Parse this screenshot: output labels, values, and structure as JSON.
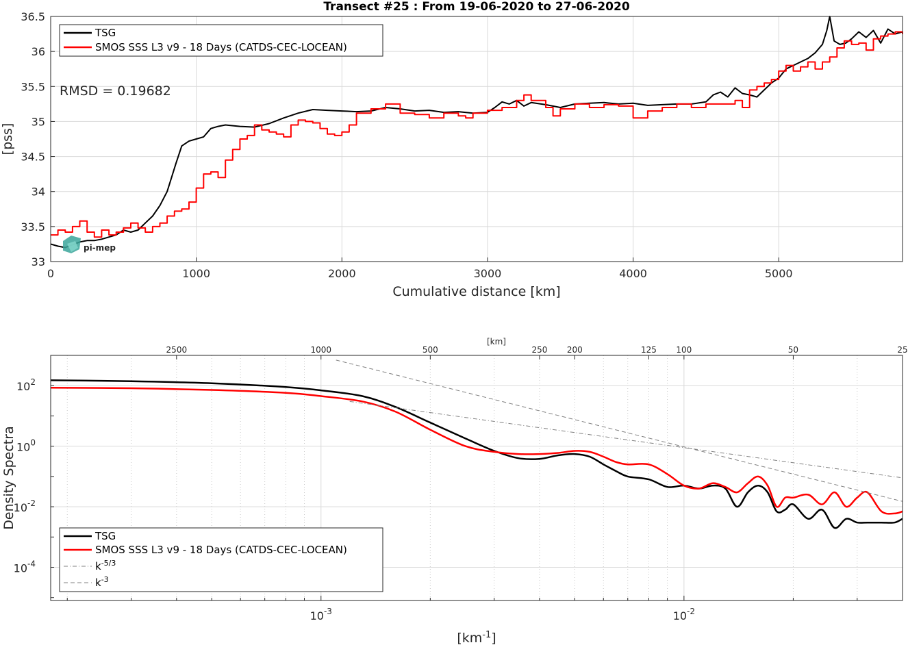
{
  "chart_data": [
    {
      "type": "line",
      "title": "Transect #25 : From 19-06-2020 to 27-06-2020",
      "xlabel": "Cumulative distance [km]",
      "ylabel": "[pss]",
      "xlim": [
        0,
        5850
      ],
      "ylim": [
        33,
        36.5
      ],
      "xticks": [
        0,
        1000,
        2000,
        3000,
        4000,
        5000
      ],
      "yticks": [
        33,
        33.5,
        34,
        34.5,
        35,
        35.5,
        36,
        36.5
      ],
      "grid": true,
      "legend_position": "top-left",
      "annotation": "RMSD = 0.19682",
      "watermark": "pi-mep",
      "series": [
        {
          "name": "TSG",
          "color": "#000000",
          "x": [
            0,
            50,
            100,
            150,
            200,
            250,
            300,
            350,
            400,
            450,
            500,
            550,
            600,
            650,
            700,
            750,
            800,
            830,
            860,
            900,
            950,
            1000,
            1050,
            1100,
            1150,
            1200,
            1300,
            1400,
            1500,
            1600,
            1700,
            1800,
            1900,
            2000,
            2100,
            2200,
            2300,
            2400,
            2500,
            2600,
            2700,
            2800,
            2900,
            3000,
            3050,
            3100,
            3150,
            3200,
            3250,
            3300,
            3400,
            3500,
            3600,
            3700,
            3800,
            3900,
            4000,
            4100,
            4200,
            4300,
            4400,
            4500,
            4550,
            4600,
            4650,
            4700,
            4750,
            4800,
            4850,
            4900,
            4950,
            5000,
            5050,
            5100,
            5150,
            5200,
            5250,
            5300,
            5330,
            5350,
            5380,
            5420,
            5460,
            5500,
            5550,
            5600,
            5650,
            5700,
            5750,
            5800,
            5850
          ],
          "y": [
            33.25,
            33.22,
            33.2,
            33.24,
            33.28,
            33.3,
            33.3,
            33.32,
            33.35,
            33.38,
            33.45,
            33.42,
            33.45,
            33.55,
            33.65,
            33.8,
            34.0,
            34.2,
            34.4,
            34.65,
            34.72,
            34.75,
            34.78,
            34.9,
            34.93,
            34.95,
            34.93,
            34.92,
            34.97,
            35.05,
            35.12,
            35.17,
            35.16,
            35.15,
            35.14,
            35.15,
            35.2,
            35.18,
            35.15,
            35.16,
            35.13,
            35.14,
            35.12,
            35.13,
            35.2,
            35.28,
            35.25,
            35.3,
            35.22,
            35.27,
            35.24,
            35.2,
            35.25,
            35.26,
            35.27,
            35.25,
            35.26,
            35.23,
            35.24,
            35.25,
            35.25,
            35.28,
            35.38,
            35.42,
            35.35,
            35.48,
            35.4,
            35.38,
            35.35,
            35.45,
            35.55,
            35.62,
            35.75,
            35.8,
            35.85,
            35.9,
            35.98,
            36.1,
            36.3,
            36.5,
            36.15,
            36.1,
            36.12,
            36.18,
            36.28,
            36.2,
            36.3,
            36.12,
            36.32,
            36.25,
            36.28
          ]
        },
        {
          "name": "SMOS SSS L3 v9 - 18 Days (CATDS-CEC-LOCEAN)",
          "color": "#ff0000",
          "x": [
            0,
            50,
            100,
            150,
            200,
            250,
            300,
            350,
            400,
            450,
            500,
            550,
            600,
            650,
            700,
            750,
            800,
            850,
            900,
            950,
            1000,
            1050,
            1100,
            1150,
            1200,
            1250,
            1300,
            1350,
            1400,
            1450,
            1500,
            1550,
            1600,
            1650,
            1700,
            1750,
            1800,
            1850,
            1900,
            1950,
            2000,
            2050,
            2100,
            2200,
            2300,
            2400,
            2500,
            2600,
            2700,
            2800,
            2850,
            2900,
            3000,
            3100,
            3200,
            3250,
            3300,
            3400,
            3450,
            3500,
            3600,
            3700,
            3800,
            3900,
            4000,
            4100,
            4200,
            4300,
            4400,
            4500,
            4600,
            4700,
            4750,
            4800,
            4850,
            4900,
            4950,
            5000,
            5050,
            5100,
            5150,
            5200,
            5250,
            5300,
            5350,
            5400,
            5450,
            5500,
            5550,
            5600,
            5650,
            5700,
            5750,
            5800,
            5850
          ],
          "y": [
            33.38,
            33.45,
            33.42,
            33.5,
            33.58,
            33.42,
            33.35,
            33.45,
            33.38,
            33.42,
            33.48,
            33.55,
            33.48,
            33.42,
            33.5,
            33.55,
            33.65,
            33.72,
            33.75,
            33.85,
            34.05,
            34.25,
            34.28,
            34.2,
            34.45,
            34.6,
            34.75,
            34.8,
            34.95,
            34.88,
            34.85,
            34.82,
            34.78,
            34.95,
            35.02,
            35.0,
            34.98,
            34.9,
            34.82,
            34.8,
            34.85,
            34.95,
            35.12,
            35.18,
            35.25,
            35.12,
            35.1,
            35.05,
            35.12,
            35.08,
            35.05,
            35.12,
            35.16,
            35.2,
            35.3,
            35.38,
            35.3,
            35.2,
            35.08,
            35.18,
            35.25,
            35.2,
            35.24,
            35.22,
            35.05,
            35.15,
            35.2,
            35.25,
            35.2,
            35.25,
            35.25,
            35.3,
            35.2,
            35.45,
            35.5,
            35.55,
            35.6,
            35.72,
            35.8,
            35.72,
            35.78,
            35.85,
            35.75,
            35.85,
            35.92,
            36.05,
            36.15,
            36.1,
            36.12,
            36.02,
            36.18,
            36.22,
            36.25,
            36.28,
            36.25
          ]
        }
      ]
    },
    {
      "type": "line",
      "xlabel": "[km-1]",
      "ylabel": "Density Spectra",
      "xscale": "log",
      "yscale": "log",
      "xlim": [
        0.00018,
        0.04
      ],
      "ylim": [
        8e-06,
        1000
      ],
      "xtick_labels": [
        "10-3",
        "10-2"
      ],
      "ytick_labels": [
        "10-4",
        "10-2",
        "100",
        "102"
      ],
      "top_axis_label": "[km]",
      "top_axis_ticks": [
        "2500",
        "1000",
        "500",
        "250",
        "200",
        "125",
        "100",
        "50",
        "25"
      ],
      "grid": true,
      "legend_position": "bottom-left",
      "series": [
        {
          "name": "TSG",
          "color": "#000000",
          "x": [
            0.00018,
            0.0003,
            0.0005,
            0.0008,
            0.001,
            0.0013,
            0.0016,
            0.002,
            0.0025,
            0.003,
            0.0035,
            0.004,
            0.0045,
            0.005,
            0.0055,
            0.006,
            0.0065,
            0.007,
            0.008,
            0.009,
            0.01,
            0.011,
            0.012,
            0.013,
            0.014,
            0.015,
            0.016,
            0.017,
            0.018,
            0.019,
            0.02,
            0.022,
            0.024,
            0.026,
            0.028,
            0.03,
            0.032,
            0.035,
            0.038,
            0.04
          ],
          "y": [
            150,
            140,
            120,
            90,
            70,
            45,
            20,
            6,
            1.8,
            0.7,
            0.4,
            0.38,
            0.5,
            0.55,
            0.45,
            0.25,
            0.15,
            0.1,
            0.08,
            0.045,
            0.05,
            0.04,
            0.05,
            0.04,
            0.01,
            0.03,
            0.05,
            0.03,
            0.007,
            0.008,
            0.012,
            0.004,
            0.008,
            0.002,
            0.004,
            0.003,
            0.003,
            0.003,
            0.003,
            0.004
          ]
        },
        {
          "name": "SMOS SSS L3 v9 - 18 Days (CATDS-CEC-LOCEAN)",
          "color": "#ff0000",
          "x": [
            0.00018,
            0.0003,
            0.0005,
            0.0008,
            0.001,
            0.0013,
            0.0016,
            0.002,
            0.0025,
            0.003,
            0.0035,
            0.004,
            0.0045,
            0.005,
            0.0055,
            0.006,
            0.0065,
            0.007,
            0.008,
            0.009,
            0.01,
            0.011,
            0.012,
            0.013,
            0.014,
            0.015,
            0.016,
            0.017,
            0.018,
            0.019,
            0.02,
            0.022,
            0.024,
            0.026,
            0.028,
            0.03,
            0.032,
            0.035,
            0.038,
            0.04
          ],
          "y": [
            85,
            82,
            72,
            58,
            45,
            30,
            14,
            3.5,
            1.0,
            0.65,
            0.55,
            0.55,
            0.6,
            0.7,
            0.65,
            0.45,
            0.3,
            0.25,
            0.25,
            0.12,
            0.05,
            0.04,
            0.06,
            0.045,
            0.03,
            0.06,
            0.1,
            0.05,
            0.01,
            0.02,
            0.02,
            0.025,
            0.012,
            0.03,
            0.01,
            0.02,
            0.03,
            0.007,
            0.006,
            0.007
          ]
        },
        {
          "name": "k-5/3",
          "color": "#808080",
          "style": "dash-dot",
          "x": [
            0.0012,
            0.04
          ],
          "y": [
            30,
            0.09
          ]
        },
        {
          "name": "k-3",
          "color": "#808080",
          "style": "dashed",
          "x": [
            0.0011,
            0.04
          ],
          "y": [
            700,
            0.015
          ]
        }
      ]
    }
  ]
}
